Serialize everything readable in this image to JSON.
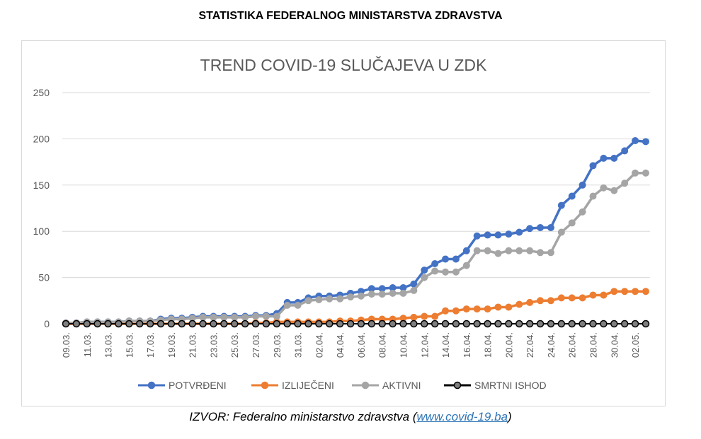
{
  "heading": "STATISTIKA FEDERALNOG MINISTARSTVA ZDRAVSTVA",
  "source": {
    "prefix": "IZVOR: Federalno ministarstvo zdravstva (",
    "link": "www.covid-19.ba",
    "suffix": ")"
  },
  "chart_data": {
    "type": "line",
    "title": "TREND COVID-19 SLUČAJEVA U ZDK",
    "xlabel": "",
    "ylabel": "",
    "ylim": [
      0,
      250
    ],
    "yticks": [
      0,
      50,
      100,
      150,
      200,
      250
    ],
    "grid": true,
    "legend": "bottom",
    "x": [
      "09.03.",
      "10.03.",
      "11.03.",
      "12.03.",
      "13.03.",
      "14.03.",
      "15.03.",
      "16.03.",
      "17.03.",
      "18.03.",
      "19.03.",
      "20.03.",
      "21.03.",
      "22.03.",
      "23.03.",
      "24.03.",
      "25.03.",
      "26.03.",
      "27.03.",
      "28.03.",
      "29.03.",
      "30.03.",
      "31.03.",
      "01.04.",
      "02.04.",
      "03.04.",
      "04.04.",
      "05.04.",
      "06.04.",
      "07.04.",
      "08.04.",
      "09.04.",
      "10.04.",
      "11.04.",
      "12.04.",
      "13.04.",
      "14.04.",
      "15.04.",
      "16.04.",
      "17.04.",
      "18.04.",
      "19.04.",
      "20.04.",
      "21.04.",
      "22.04.",
      "23.04.",
      "24.04.",
      "25.04.",
      "26.04.",
      "27.04.",
      "28.04.",
      "29.04.",
      "30.04.",
      "01.05.",
      "02.05.",
      "03.05."
    ],
    "tick_labels": [
      "09.03.",
      "11.03.",
      "13.03.",
      "15.03.",
      "17.03.",
      "19.03.",
      "21.03.",
      "23.03.",
      "25.03.",
      "27.03.",
      "29.03.",
      "31.03.",
      "02.04.",
      "04.04.",
      "06.04.",
      "08.04.",
      "10.04.",
      "12.04.",
      "14.04.",
      "16.04.",
      "18.04.",
      "20.04.",
      "22.04.",
      "24.04.",
      "26.04.",
      "28.04.",
      "30.04.",
      "02.05."
    ],
    "series": [
      {
        "name": "POTVRĐENI",
        "color": "#4472c4",
        "marker_fill": "#4472c4",
        "marker_stroke": "#4472c4",
        "values": [
          1,
          1,
          2,
          2,
          2,
          2,
          3,
          3,
          3,
          5,
          6,
          6,
          7,
          8,
          8,
          8,
          8,
          8,
          9,
          9,
          11,
          23,
          23,
          28,
          30,
          30,
          31,
          33,
          35,
          38,
          38,
          39,
          39,
          43,
          58,
          65,
          70,
          70,
          79,
          95,
          96,
          96,
          97,
          99,
          103,
          104,
          104,
          128,
          138,
          150,
          171,
          179,
          179,
          187,
          198,
          197
        ]
      },
      {
        "name": "IZLIJEČENI",
        "color": "#ed7d31",
        "marker_fill": "#ed7d31",
        "marker_stroke": "#ed7d31",
        "values": [
          0,
          0,
          0,
          0,
          0,
          0,
          0,
          0,
          0,
          0,
          0,
          0,
          0,
          0,
          0,
          0,
          0,
          0,
          1,
          1,
          2,
          2,
          2,
          2,
          2,
          2,
          3,
          3,
          4,
          5,
          5,
          5,
          6,
          7,
          8,
          8,
          14,
          14,
          16,
          16,
          16,
          18,
          18,
          21,
          23,
          25,
          25,
          28,
          28,
          28,
          31,
          31,
          35,
          35,
          35,
          35
        ]
      },
      {
        "name": "AKTIVNI",
        "color": "#a5a5a5",
        "marker_fill": "#a5a5a5",
        "marker_stroke": "#a5a5a5",
        "values": [
          1,
          1,
          2,
          2,
          2,
          2,
          3,
          3,
          3,
          4,
          5,
          5,
          6,
          7,
          7,
          7,
          7,
          7,
          8,
          8,
          8,
          20,
          20,
          25,
          26,
          27,
          27,
          29,
          30,
          32,
          32,
          33,
          33,
          36,
          50,
          57,
          56,
          56,
          63,
          79,
          79,
          76,
          79,
          79,
          79,
          77,
          77,
          99,
          109,
          121,
          138,
          147,
          144,
          152,
          163,
          163
        ]
      },
      {
        "name": "SMRTNI ISHOD",
        "color": "#000000",
        "marker_fill": "#7f7f7f",
        "marker_stroke": "#000000",
        "values": [
          0,
          0,
          0,
          0,
          0,
          0,
          0,
          0,
          0,
          0,
          0,
          0,
          0,
          0,
          0,
          0,
          0,
          0,
          0,
          0,
          0,
          0,
          0,
          0,
          0,
          0,
          0,
          0,
          0,
          0,
          0,
          0,
          0,
          0,
          0,
          0,
          0,
          0,
          0,
          0,
          0,
          0,
          0,
          0,
          0,
          0,
          0,
          0,
          0,
          0,
          0,
          0,
          0,
          0,
          0,
          0
        ]
      }
    ]
  }
}
